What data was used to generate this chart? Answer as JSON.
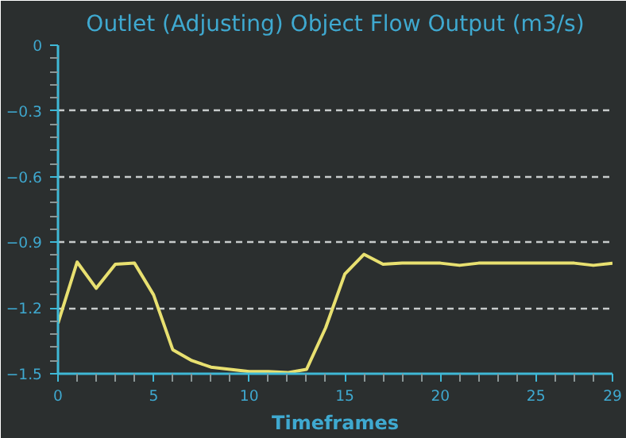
{
  "chart_data": {
    "type": "line",
    "title": "Outlet (Adjusting) Object Flow Output (m3/s)",
    "xlabel": "Timeframes",
    "x": [
      0,
      1,
      2,
      3,
      4,
      5,
      6,
      7,
      8,
      9,
      10,
      11,
      12,
      13,
      14,
      15,
      16,
      17,
      18,
      19,
      20,
      21,
      22,
      23,
      24,
      25,
      26,
      27,
      28,
      29
    ],
    "series": [
      {
        "color": "#e8e070",
        "values": [
          -1.27,
          -0.99,
          -1.11,
          -1.0,
          -0.995,
          -1.14,
          -1.39,
          -1.44,
          -1.47,
          -1.48,
          -1.49,
          -1.49,
          -1.495,
          -1.48,
          -1.29,
          -1.045,
          -0.955,
          -1.0,
          -0.995,
          -0.995,
          -0.995,
          -1.005,
          -0.995,
          -0.995,
          -0.995,
          -0.995,
          -0.995,
          -0.995,
          -1.005,
          -0.995
        ]
      }
    ],
    "xlim": [
      0,
      29
    ],
    "ylim": [
      -1.5,
      0
    ],
    "xticks": [
      0,
      {
        "value": 1,
        "label": null
      },
      {
        "value": 2,
        "label": null
      },
      {
        "value": 3,
        "label": null
      },
      {
        "value": 4,
        "label": null
      },
      5,
      {
        "value": 6,
        "label": null
      },
      {
        "value": 7,
        "label": null
      },
      {
        "value": 8,
        "label": null
      },
      {
        "value": 9,
        "label": null
      },
      10,
      {
        "value": 11,
        "label": null
      },
      {
        "value": 12,
        "label": null
      },
      {
        "value": 13,
        "label": null
      },
      {
        "value": 14,
        "label": null
      },
      15,
      {
        "value": 16,
        "label": null
      },
      {
        "value": 17,
        "label": null
      },
      {
        "value": 18,
        "label": null
      },
      {
        "value": 19,
        "label": null
      },
      20,
      {
        "value": 21,
        "label": null
      },
      {
        "value": 22,
        "label": null
      },
      {
        "value": 23,
        "label": null
      },
      {
        "value": 24,
        "label": null
      },
      25,
      {
        "value": 26,
        "label": null
      },
      {
        "value": 27,
        "label": null
      },
      {
        "value": 28,
        "label": null
      },
      29
    ],
    "yticks": [
      0,
      {
        "value": -0.06,
        "label": null
      },
      {
        "value": -0.12,
        "label": null
      },
      {
        "value": -0.18,
        "label": null
      },
      {
        "value": -0.24,
        "label": null
      },
      -0.3,
      {
        "value": -0.36,
        "label": null
      },
      {
        "value": -0.42,
        "label": null
      },
      {
        "value": -0.48,
        "label": null
      },
      {
        "value": -0.54,
        "label": null
      },
      -0.6,
      {
        "value": -0.66,
        "label": null
      },
      {
        "value": -0.72,
        "label": null
      },
      {
        "value": -0.78,
        "label": null
      },
      {
        "value": -0.84,
        "label": null
      },
      -0.9,
      {
        "value": -0.96,
        "label": null
      },
      {
        "value": -1.02,
        "label": null
      },
      {
        "value": -1.08,
        "label": null
      },
      {
        "value": -1.14,
        "label": null
      },
      -1.2,
      {
        "value": -1.26,
        "label": null
      },
      {
        "value": -1.32,
        "label": null
      },
      {
        "value": -1.38,
        "label": null
      },
      {
        "value": -1.44,
        "label": null
      },
      -1.5
    ],
    "grid": "y",
    "marker": "none",
    "line_style": "solid"
  }
}
